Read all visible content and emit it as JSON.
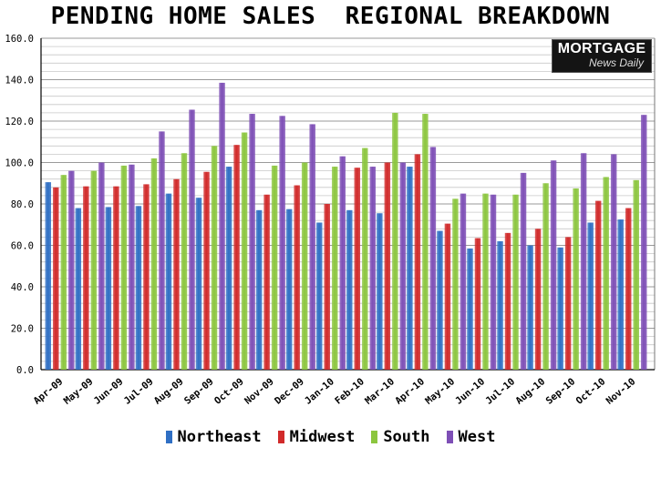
{
  "chart_data": {
    "type": "bar",
    "title": "PENDING HOME SALES  REGIONAL BREAKDOWN",
    "categories": [
      "Apr-09",
      "May-09",
      "Jun-09",
      "Jul-09",
      "Aug-09",
      "Sep-09",
      "Oct-09",
      "Nov-09",
      "Dec-09",
      "Jan-10",
      "Feb-10",
      "Mar-10",
      "Apr-10",
      "May-10",
      "Jun-10",
      "Jul-10",
      "Aug-10",
      "Sep-10",
      "Oct-10",
      "Nov-10"
    ],
    "series": [
      {
        "name": "Northeast",
        "color": "#2f6fc4",
        "values": [
          90.5,
          78,
          78.5,
          79,
          85,
          83,
          98,
          77,
          77.5,
          71,
          77,
          75.5,
          98,
          67,
          58.5,
          62,
          60,
          59,
          71,
          72.5
        ]
      },
      {
        "name": "Midwest",
        "color": "#d12a2a",
        "values": [
          88,
          88.5,
          88.5,
          89.5,
          92,
          95.5,
          108.5,
          84.5,
          89,
          80,
          97.5,
          100,
          104,
          70.5,
          63.5,
          66,
          68,
          64,
          81.5,
          78
        ]
      },
      {
        "name": "South",
        "color": "#8cc63f",
        "values": [
          94,
          96,
          98.5,
          102,
          104.5,
          108,
          114.5,
          98.5,
          100,
          98,
          107,
          124,
          123.5,
          82.5,
          85,
          84.5,
          90,
          87.5,
          93,
          91.5
        ]
      },
      {
        "name": "West",
        "color": "#7e4fb6",
        "values": [
          96,
          100,
          99,
          115,
          125.5,
          138.5,
          123.5,
          122.5,
          118.5,
          103,
          98,
          100,
          107.5,
          85,
          84.5,
          95,
          101,
          104.5,
          104,
          123
        ]
      }
    ],
    "ylim": [
      0,
      160
    ],
    "yticks": [
      "0.0",
      "20.0",
      "40.0",
      "60.0",
      "80.0",
      "100.0",
      "120.0",
      "140.0",
      "160.0"
    ],
    "grid": true,
    "legend_position": "bottom"
  },
  "logo": {
    "line1": "MORTGAGE",
    "line2": "News Daily"
  }
}
